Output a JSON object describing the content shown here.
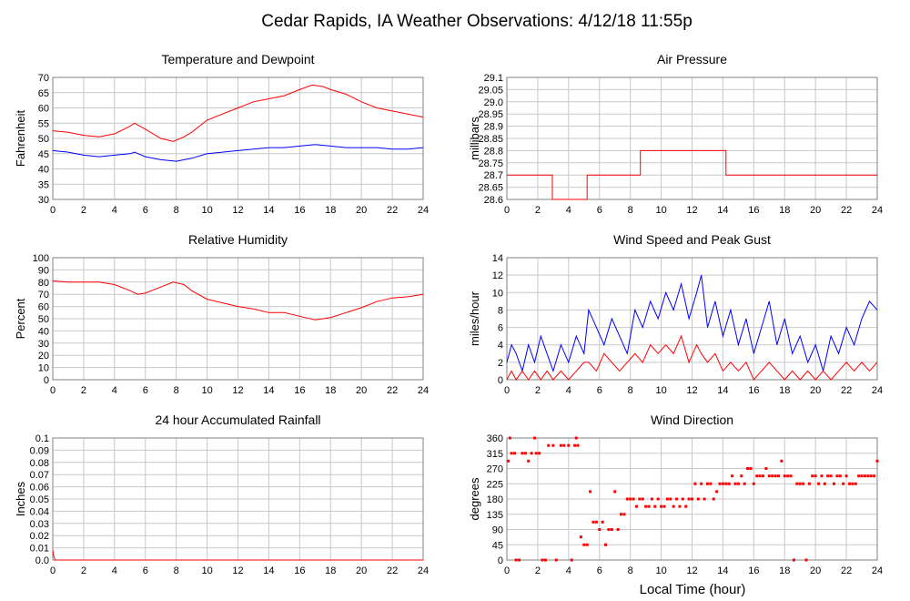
{
  "page": {
    "title": "Cedar Rapids, IA Weather Observations: 4/12/18 11:55p",
    "xlabel": "Local Time (hour)"
  },
  "chart_data": [
    {
      "id": "temp",
      "type": "line",
      "title": "Temperature and Dewpoint",
      "ylabel": "Fahrenheit",
      "xlim": [
        0,
        24
      ],
      "ylim": [
        30,
        70
      ],
      "yticks": [
        "30",
        "35",
        "40",
        "45",
        "50",
        "55",
        "60",
        "65",
        "70"
      ],
      "xticks": [
        "0",
        "2",
        "4",
        "6",
        "8",
        "10",
        "12",
        "14",
        "16",
        "18",
        "20",
        "22",
        "24"
      ],
      "grid": true,
      "series": [
        {
          "color": "#ff0000",
          "x": [
            0,
            1,
            2,
            3,
            4,
            5,
            5.3,
            6,
            7,
            7.8,
            8.5,
            9,
            10,
            11,
            12,
            13,
            14,
            15,
            16,
            16.8,
            17.5,
            18,
            19,
            20,
            21,
            22,
            23,
            24
          ],
          "y": [
            52.5,
            52,
            51,
            50.5,
            51.5,
            54,
            55,
            53,
            50,
            49,
            50.5,
            52,
            56,
            58,
            60,
            62,
            63,
            64,
            66,
            67.5,
            67,
            66,
            64.5,
            62,
            60,
            59,
            58,
            57
          ]
        },
        {
          "color": "#0000ff",
          "x": [
            0,
            1,
            2,
            3,
            4,
            5,
            5.3,
            6,
            7,
            8,
            9,
            10,
            11,
            12,
            13,
            14,
            15,
            16,
            17,
            18,
            19,
            20,
            21,
            22,
            23,
            24
          ],
          "y": [
            46,
            45.5,
            44.5,
            44,
            44.5,
            45,
            45.5,
            44,
            43,
            42.5,
            43.5,
            45,
            45.5,
            46,
            46.5,
            47,
            47,
            47.5,
            48,
            47.5,
            47,
            47,
            47,
            46.5,
            46.5,
            47
          ]
        }
      ]
    },
    {
      "id": "pressure",
      "type": "line",
      "title": "Air Pressure",
      "ylabel": "millibars",
      "xlim": [
        0,
        24
      ],
      "ylim": [
        28.6,
        29.1
      ],
      "yticks": [
        "28.6",
        "28.65",
        "28.7",
        "28.75",
        "28.8",
        "28.85",
        "28.9",
        "28.95",
        "29.0",
        "29.05",
        "29.1"
      ],
      "xticks": [
        "0",
        "2",
        "4",
        "6",
        "8",
        "10",
        "12",
        "14",
        "16",
        "18",
        "20",
        "22",
        "24"
      ],
      "grid": true,
      "series": [
        {
          "color": "#ff0000",
          "x": [
            0,
            2.95,
            2.95,
            5.2,
            5.2,
            8.65,
            8.65,
            14.2,
            14.2,
            24
          ],
          "y": [
            28.7,
            28.7,
            28.6,
            28.6,
            28.7,
            28.7,
            28.8,
            28.8,
            28.7,
            28.7
          ]
        }
      ]
    },
    {
      "id": "humidity",
      "type": "line",
      "title": "Relative Humidity",
      "ylabel": "Percent",
      "xlim": [
        0,
        24
      ],
      "ylim": [
        0,
        100
      ],
      "yticks": [
        "0",
        "10",
        "20",
        "30",
        "40",
        "50",
        "60",
        "70",
        "80",
        "90",
        "100"
      ],
      "xticks": [
        "0",
        "2",
        "4",
        "6",
        "8",
        "10",
        "12",
        "14",
        "16",
        "18",
        "20",
        "22",
        "24"
      ],
      "grid": true,
      "series": [
        {
          "color": "#ff0000",
          "x": [
            0,
            1,
            2,
            3,
            4,
            5,
            5.5,
            6,
            7,
            7.8,
            8.5,
            9,
            10,
            11,
            12,
            13,
            14,
            15,
            16,
            17,
            18,
            19,
            20,
            21,
            22,
            23,
            24
          ],
          "y": [
            81,
            80,
            80,
            80,
            78,
            73,
            70,
            71,
            76,
            80,
            78,
            73,
            66,
            63,
            60,
            58,
            55,
            55,
            52,
            49,
            51,
            55,
            59,
            64,
            67,
            68,
            70
          ]
        }
      ]
    },
    {
      "id": "wind",
      "type": "line",
      "title": "Wind Speed and Peak Gust",
      "ylabel": "miles/hour",
      "xlim": [
        0,
        24
      ],
      "ylim": [
        0,
        14
      ],
      "yticks": [
        "0",
        "2",
        "4",
        "6",
        "8",
        "10",
        "12",
        "14"
      ],
      "xticks": [
        "0",
        "2",
        "4",
        "6",
        "8",
        "10",
        "12",
        "14",
        "16",
        "18",
        "20",
        "22",
        "24"
      ],
      "grid": true,
      "series": [
        {
          "color": "#0000ff",
          "x": [
            0,
            0.3,
            0.6,
            1,
            1.4,
            1.8,
            2.2,
            2.6,
            3,
            3.5,
            4,
            4.5,
            5,
            5.3,
            5.8,
            6.3,
            6.8,
            7.3,
            7.8,
            8.3,
            8.8,
            9.3,
            9.8,
            10.3,
            10.8,
            11.3,
            11.8,
            12.3,
            12.6,
            13,
            13.5,
            14,
            14.5,
            15,
            15.5,
            16,
            16.5,
            17,
            17.5,
            18,
            18.5,
            19,
            19.5,
            20,
            20.5,
            21,
            21.5,
            22,
            22.5,
            23,
            23.5,
            24
          ],
          "y": [
            2,
            4,
            3,
            1,
            4,
            2,
            5,
            3,
            1,
            4,
            2,
            5,
            3,
            8,
            6,
            4,
            7,
            5,
            3,
            8,
            6,
            9,
            7,
            10,
            8,
            11,
            7,
            10,
            12,
            6,
            9,
            5,
            8,
            4,
            7,
            3,
            6,
            9,
            4,
            7,
            3,
            5,
            2,
            4,
            1,
            5,
            3,
            6,
            4,
            7,
            9,
            8
          ]
        },
        {
          "color": "#ff0000",
          "x": [
            0,
            0.3,
            0.6,
            1,
            1.4,
            1.8,
            2.2,
            2.6,
            3,
            3.5,
            4,
            4.5,
            5,
            5.3,
            5.8,
            6.3,
            6.8,
            7.3,
            7.8,
            8.3,
            8.8,
            9.3,
            9.8,
            10.3,
            10.8,
            11.3,
            11.8,
            12.3,
            12.6,
            13,
            13.5,
            14,
            14.5,
            15,
            15.5,
            16,
            16.5,
            17,
            17.5,
            18,
            18.5,
            19,
            19.5,
            20,
            20.5,
            21,
            21.5,
            22,
            22.5,
            23,
            23.5,
            24
          ],
          "y": [
            0,
            1,
            0,
            1,
            0,
            1,
            0,
            1,
            0,
            1,
            0,
            1,
            2,
            2,
            1,
            3,
            2,
            1,
            2,
            3,
            2,
            4,
            3,
            4,
            3,
            5,
            2,
            4,
            3,
            2,
            3,
            1,
            2,
            1,
            2,
            0,
            1,
            2,
            1,
            0,
            1,
            0,
            1,
            0,
            1,
            0,
            1,
            2,
            1,
            2,
            1,
            2
          ]
        }
      ]
    },
    {
      "id": "rain",
      "type": "line",
      "title": "24 hour Accumulated Rainfall",
      "ylabel": "Inches",
      "xlim": [
        0,
        24
      ],
      "ylim": [
        0,
        0.1
      ],
      "yticks": [
        "0.0",
        "0.01",
        "0.02",
        "0.03",
        "0.04",
        "0.05",
        "0.06",
        "0.07",
        "0.08",
        "0.09",
        "0.1"
      ],
      "xticks": [
        "0",
        "2",
        "4",
        "6",
        "8",
        "10",
        "12",
        "14",
        "16",
        "18",
        "20",
        "22",
        "24"
      ],
      "grid": true,
      "series": [
        {
          "color": "#ff0000",
          "x": [
            0,
            0.05,
            0.15,
            24
          ],
          "y": [
            0.008,
            0.004,
            0,
            0
          ]
        }
      ]
    },
    {
      "id": "direction",
      "type": "scatter",
      "title": "Wind Direction",
      "ylabel": "degrees",
      "xlim": [
        0,
        24
      ],
      "ylim": [
        0,
        360
      ],
      "yticks": [
        "0",
        "45",
        "90",
        "135",
        "180",
        "225",
        "270",
        "315",
        "360"
      ],
      "xticks": [
        "0",
        "2",
        "4",
        "6",
        "8",
        "10",
        "12",
        "14",
        "16",
        "18",
        "20",
        "22",
        "24"
      ],
      "grid": true,
      "series": [
        {
          "color": "#ff0000",
          "x": [
            0.1,
            0.2,
            0.3,
            0.5,
            0.6,
            0.8,
            1.0,
            1.2,
            1.4,
            1.6,
            1.8,
            1.9,
            2.1,
            2.3,
            2.5,
            2.7,
            3.0,
            3.2,
            3.5,
            3.7,
            4.0,
            4.2,
            4.4,
            4.5,
            4.6,
            4.8,
            5.0,
            5.2,
            5.4,
            5.6,
            5.8,
            6.0,
            6.2,
            6.4,
            6.6,
            6.8,
            7.0,
            7.2,
            7.4,
            7.6,
            7.8,
            8.0,
            8.2,
            8.4,
            8.6,
            8.8,
            9.0,
            9.2,
            9.4,
            9.6,
            9.8,
            10.0,
            10.2,
            10.4,
            10.6,
            10.8,
            11.0,
            11.2,
            11.4,
            11.6,
            11.8,
            12.0,
            12.2,
            12.4,
            12.6,
            12.8,
            13.0,
            13.2,
            13.4,
            13.6,
            13.8,
            14.0,
            14.2,
            14.4,
            14.6,
            14.8,
            15.0,
            15.2,
            15.4,
            15.6,
            15.8,
            16.0,
            16.2,
            16.4,
            16.6,
            16.8,
            17.0,
            17.2,
            17.4,
            17.6,
            17.8,
            18.0,
            18.2,
            18.4,
            18.6,
            18.8,
            19.0,
            19.2,
            19.4,
            19.6,
            19.8,
            20.0,
            20.2,
            20.4,
            20.6,
            20.8,
            21.0,
            21.2,
            21.4,
            21.6,
            21.8,
            22.0,
            22.2,
            22.4,
            22.6,
            22.8,
            23.0,
            23.2,
            23.4,
            23.6,
            23.8,
            24.0
          ],
          "y": [
            292,
            360,
            315,
            315,
            0,
            0,
            315,
            315,
            292,
            315,
            360,
            315,
            315,
            0,
            0,
            338,
            338,
            0,
            338,
            338,
            338,
            0,
            338,
            360,
            338,
            68,
            45,
            45,
            202,
            112,
            112,
            90,
            112,
            45,
            90,
            90,
            202,
            90,
            135,
            135,
            180,
            180,
            180,
            158,
            180,
            180,
            158,
            158,
            180,
            158,
            180,
            158,
            158,
            180,
            180,
            158,
            180,
            158,
            180,
            158,
            180,
            180,
            225,
            180,
            225,
            180,
            225,
            225,
            180,
            202,
            225,
            225,
            225,
            225,
            248,
            225,
            225,
            248,
            225,
            270,
            270,
            225,
            248,
            248,
            248,
            270,
            248,
            248,
            248,
            248,
            292,
            248,
            248,
            248,
            0,
            225,
            225,
            225,
            0,
            225,
            248,
            248,
            225,
            248,
            225,
            248,
            248,
            225,
            248,
            248,
            225,
            248,
            225,
            225,
            225,
            248,
            248,
            248,
            248,
            248,
            248,
            292
          ]
        }
      ]
    }
  ]
}
